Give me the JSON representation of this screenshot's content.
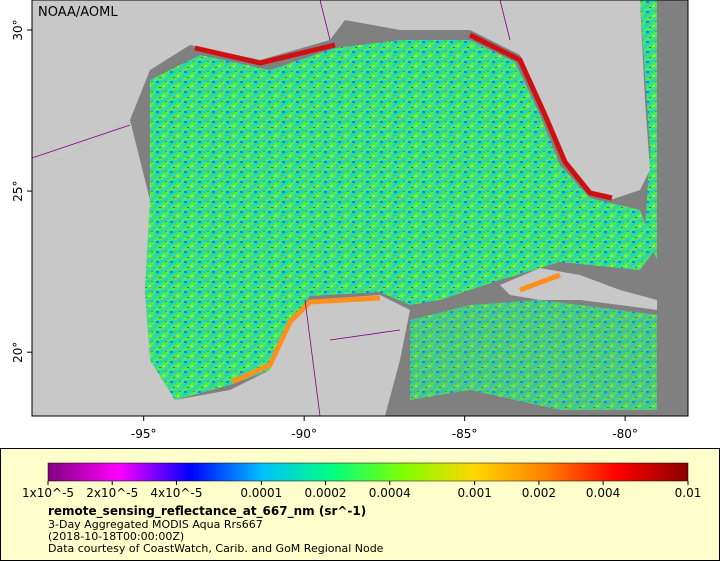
{
  "map": {
    "credit": "NOAA/AOML",
    "lonlim": [
      -98.48,
      -78.04
    ],
    "latlim": [
      18.02,
      30.93
    ],
    "lon_ticks": [
      {
        "value": -95,
        "label": "-95°"
      },
      {
        "value": -90,
        "label": "-90°"
      },
      {
        "value": -85,
        "label": "-85°"
      },
      {
        "value": -80,
        "label": "-80°"
      }
    ],
    "lat_ticks": [
      {
        "value": 20,
        "label": "20°"
      },
      {
        "value": 25,
        "label": "25°"
      },
      {
        "value": 30,
        "label": "30°"
      }
    ]
  },
  "legend": {
    "scale": "log",
    "range": [
      1e-05,
      0.01
    ],
    "colors": [
      "#800080",
      "#ff00ff",
      "#0000ff",
      "#00bfff",
      "#00ff80",
      "#80ff00",
      "#ffd700",
      "#ff8000",
      "#ff0000",
      "#8b0000"
    ],
    "ticks": [
      {
        "value": 1e-05,
        "label": "1x10^-5"
      },
      {
        "value": 2e-05,
        "label": "2x10^-5"
      },
      {
        "value": 4e-05,
        "label": "4x10^-5"
      },
      0.0001,
      0.0002,
      0.0004,
      0.001,
      0.002,
      0.004,
      0.01
    ],
    "variable": "remote_sensing_reflectance_at_667_nm (sr^-1)",
    "lines": [
      "3-Day Aggregated MODIS Aqua Rrs667",
      "(2018-10-18T00:00:00Z)",
      "Data courtesy of CoastWatch, Carib. and GoM Regional Node"
    ]
  }
}
